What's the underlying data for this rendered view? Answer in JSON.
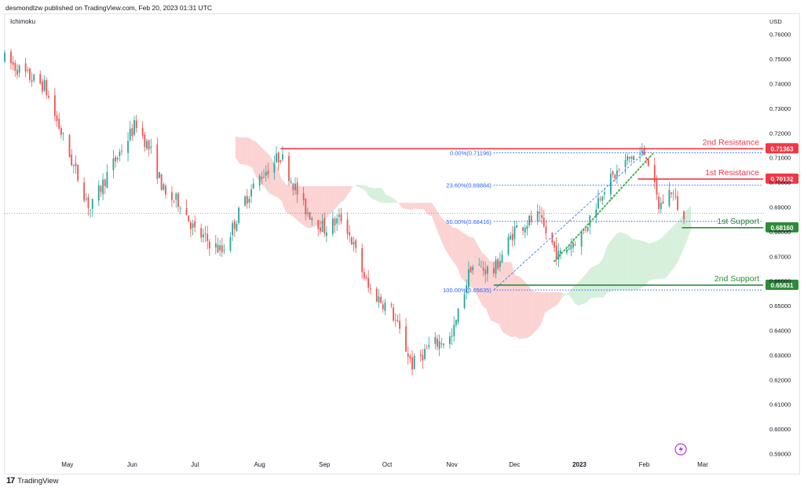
{
  "header": {
    "publisher": "desmondlzw published on TradingView.com, Feb 20, 2023 01:31 UTC",
    "indicator": "Ichimoku",
    "currency": "USD"
  },
  "footer": {
    "logo_mark": "17",
    "brand": "TradingView"
  },
  "colors": {
    "up": "#26a69a",
    "down": "#ef5350",
    "resistance": "#f23645",
    "support": "#2e8b3a",
    "fib": "#2962ff",
    "trend": "#4caf50",
    "cloud_bear": "#f9c4c4",
    "cloud_bull": "#c8ebd0"
  },
  "chart_data": {
    "type": "candlestick",
    "title": "",
    "xlabel": "",
    "ylabel": "USD",
    "ylim": [
      0.586,
      0.765
    ],
    "y_ticks": [
      "0.76000",
      "0.75000",
      "0.74000",
      "0.73000",
      "0.72000",
      "0.71000",
      "0.70000",
      "0.69000",
      "0.68000",
      "0.67000",
      "0.66000",
      "0.65000",
      "0.64000",
      "0.63000",
      "0.62000",
      "0.61000",
      "0.60000",
      "0.59000"
    ],
    "x_ticks": [
      "May",
      "Jun",
      "Jul",
      "Aug",
      "Sep",
      "Oct",
      "Nov",
      "Dec",
      "2023",
      "Feb",
      "Mar"
    ],
    "price_path": [
      {
        "date": "2022-04-01",
        "close": 0.75
      },
      {
        "date": "2022-04-12",
        "close": 0.743
      },
      {
        "date": "2022-04-20",
        "close": 0.739
      },
      {
        "date": "2022-05-01",
        "close": 0.713
      },
      {
        "date": "2022-05-12",
        "close": 0.689
      },
      {
        "date": "2022-05-20",
        "close": 0.703
      },
      {
        "date": "2022-06-03",
        "close": 0.724
      },
      {
        "date": "2022-06-10",
        "close": 0.712
      },
      {
        "date": "2022-06-17",
        "close": 0.694
      },
      {
        "date": "2022-06-24",
        "close": 0.692
      },
      {
        "date": "2022-07-01",
        "close": 0.68
      },
      {
        "date": "2022-07-14",
        "close": 0.672
      },
      {
        "date": "2022-07-25",
        "close": 0.693
      },
      {
        "date": "2022-08-01",
        "close": 0.702
      },
      {
        "date": "2022-08-11",
        "close": 0.711
      },
      {
        "date": "2022-08-22",
        "close": 0.69
      },
      {
        "date": "2022-09-01",
        "close": 0.681
      },
      {
        "date": "2022-09-10",
        "close": 0.686
      },
      {
        "date": "2022-09-22",
        "close": 0.657
      },
      {
        "date": "2022-10-03",
        "close": 0.648
      },
      {
        "date": "2022-10-13",
        "close": 0.626
      },
      {
        "date": "2022-10-22",
        "close": 0.634
      },
      {
        "date": "2022-11-01",
        "close": 0.637
      },
      {
        "date": "2022-11-10",
        "close": 0.666
      },
      {
        "date": "2022-11-21",
        "close": 0.664
      },
      {
        "date": "2022-12-01",
        "close": 0.681
      },
      {
        "date": "2022-12-12",
        "close": 0.686
      },
      {
        "date": "2022-12-22",
        "close": 0.67
      },
      {
        "date": "2023-01-03",
        "close": 0.68
      },
      {
        "date": "2023-01-12",
        "close": 0.697
      },
      {
        "date": "2023-01-25",
        "close": 0.71
      },
      {
        "date": "2023-02-02",
        "close": 0.712
      },
      {
        "date": "2023-02-08",
        "close": 0.69
      },
      {
        "date": "2023-02-14",
        "close": 0.697
      },
      {
        "date": "2023-02-20",
        "close": 0.684
      }
    ],
    "horizontal_levels": [
      {
        "label": "2nd Resistance",
        "value": 0.71363,
        "price_label": "0.71363",
        "kind": "resistance",
        "from": "2022-08-11"
      },
      {
        "label": "1st Resistance",
        "value": 0.70132,
        "price_label": "0.70132",
        "kind": "resistance",
        "from": "2023-01-29"
      },
      {
        "label": "1st Support",
        "value": 0.6816,
        "price_label": "0.68160",
        "kind": "support",
        "from": "2023-02-19"
      },
      {
        "label": "2nd Support",
        "value": 0.65831,
        "price_label": "0.65831",
        "kind": "support",
        "from": "2022-11-21"
      }
    ],
    "fibonacci": [
      {
        "label": "0.00%(0.71196)",
        "value": 0.71196
      },
      {
        "label": "23.60%(0.69884)",
        "value": 0.69884
      },
      {
        "label": "50.00%(0.68416)",
        "value": 0.68416
      },
      {
        "label": "100.00%(0.65635)",
        "value": 0.65635
      }
    ],
    "current_price_line": 0.6875
  }
}
